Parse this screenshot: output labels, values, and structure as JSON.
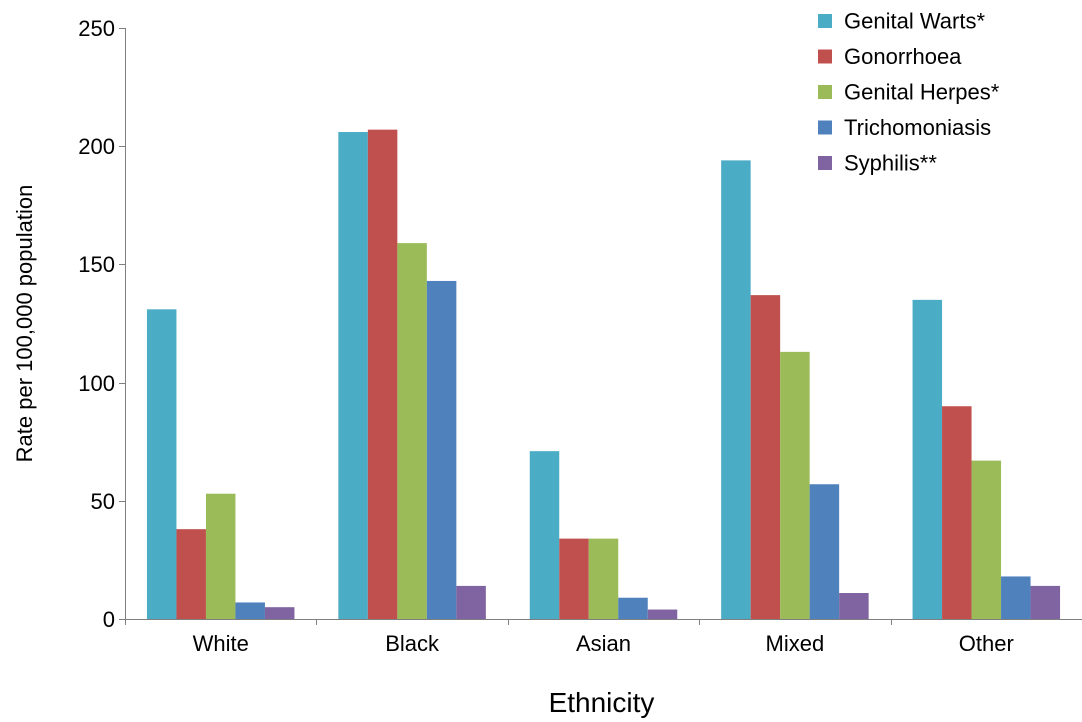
{
  "chart_data": {
    "type": "bar",
    "title": "",
    "xlabel": "Ethnicity",
    "ylabel": "Rate per 100,000 population",
    "ylim": [
      0,
      250
    ],
    "yticks": [
      0,
      50,
      100,
      150,
      200,
      250
    ],
    "categories": [
      "White",
      "Black",
      "Asian",
      "Mixed",
      "Other"
    ],
    "series": [
      {
        "name": "Genital Warts*",
        "color": "#4bacc6",
        "values": [
          131,
          206,
          71,
          194,
          135
        ]
      },
      {
        "name": "Gonorrhoea",
        "color": "#c0504d",
        "values": [
          38,
          207,
          34,
          137,
          90
        ]
      },
      {
        "name": "Genital Herpes*",
        "color": "#9bbb59",
        "values": [
          53,
          159,
          34,
          113,
          67
        ]
      },
      {
        "name": "Trichomoniasis",
        "color": "#4f81bd",
        "values": [
          7,
          143,
          9,
          57,
          18
        ]
      },
      {
        "name": "Syphilis**",
        "color": "#8064a2",
        "values": [
          5,
          14,
          4,
          11,
          14
        ]
      }
    ],
    "legend_position": "top-right",
    "grid": false
  }
}
